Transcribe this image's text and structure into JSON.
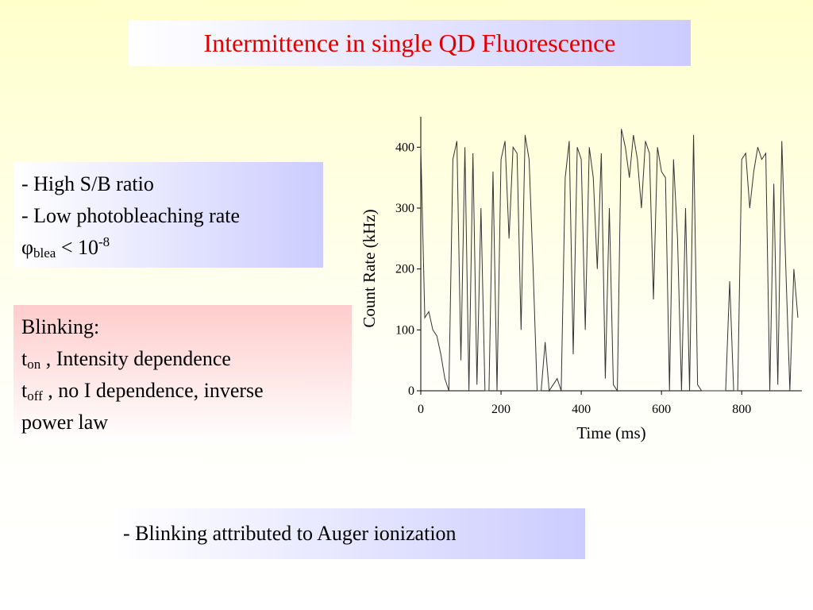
{
  "title": "Intermittence in single QD Fluorescence",
  "properties_box": {
    "line1": "- High S/B ratio",
    "line2": "- Low photobleaching rate",
    "line3": {
      "symbol": "φ",
      "sub": "blea",
      "text": " < 10",
      "sup": "-8"
    }
  },
  "blinking_box": {
    "line1": "Blinking:",
    "line2": {
      "main": "t",
      "sub": "on",
      "text": " , Intensity dependence"
    },
    "line3": {
      "main": "t",
      "sub": "off",
      "text": " , no I dependence, inverse"
    },
    "line4": "power law"
  },
  "footer_box": "- Blinking attributed to  Auger ionization",
  "chart_data": {
    "type": "line",
    "x_label": "Time (ms)",
    "y_label": "Count Rate (kHz)",
    "x": [
      0,
      10,
      20,
      30,
      40,
      50,
      60,
      70,
      80,
      90,
      100,
      110,
      120,
      130,
      140,
      150,
      160,
      170,
      180,
      190,
      200,
      210,
      220,
      230,
      240,
      250,
      260,
      270,
      280,
      290,
      300,
      310,
      320,
      330,
      340,
      350,
      360,
      370,
      380,
      390,
      400,
      410,
      420,
      430,
      440,
      450,
      460,
      470,
      480,
      490,
      500,
      510,
      520,
      530,
      540,
      550,
      560,
      570,
      580,
      590,
      600,
      610,
      620,
      630,
      640,
      650,
      660,
      670,
      680,
      690,
      700,
      710,
      720,
      730,
      740,
      750,
      760,
      770,
      780,
      790,
      800,
      810,
      820,
      830,
      840,
      850,
      860,
      870,
      880,
      890,
      900,
      910,
      920,
      930,
      940
    ],
    "series": [
      {
        "color": "#333333",
        "values": [
          400,
          120,
          130,
          100,
          90,
          60,
          20,
          0,
          380,
          410,
          50,
          400,
          0,
          390,
          10,
          300,
          0,
          0,
          360,
          0,
          380,
          410,
          250,
          400,
          390,
          100,
          420,
          380,
          200,
          0,
          0,
          80,
          0,
          10,
          20,
          0,
          350,
          410,
          60,
          400,
          380,
          100,
          400,
          350,
          200,
          390,
          20,
          300,
          10,
          0,
          430,
          400,
          350,
          420,
          380,
          300,
          410,
          390,
          150,
          400,
          360,
          350,
          0,
          380,
          250,
          0,
          300,
          0,
          420,
          10,
          0,
          0,
          0,
          0,
          0,
          0,
          0,
          180,
          0,
          0,
          380,
          390,
          300,
          360,
          400,
          380,
          390,
          0,
          340,
          10,
          410,
          200,
          0,
          200,
          120
        ]
      }
    ],
    "xlim": [
      0,
      950
    ],
    "ylim": [
      0,
      450
    ],
    "xticks": [
      0,
      200,
      400,
      600,
      800
    ],
    "yticks": [
      0,
      100,
      200,
      300,
      400
    ]
  }
}
